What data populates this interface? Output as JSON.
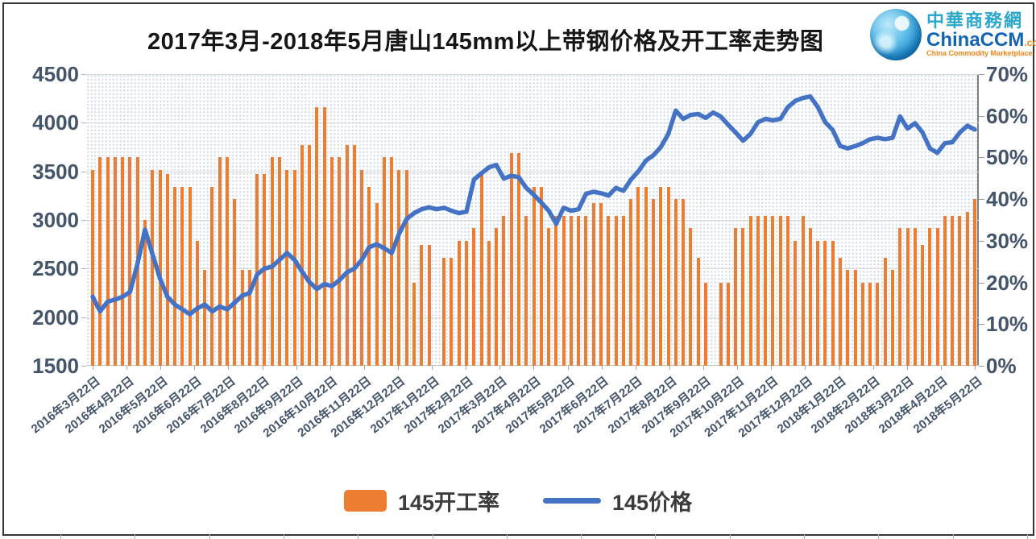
{
  "title": "2017年3月-2018年5月唐山145mm以上带钢价格及开工率走势图",
  "logo": {
    "cn": "中華商務網",
    "en": "ChinaCCM",
    "tld": ".com",
    "tagline": "China Commodity Marketplace"
  },
  "colors": {
    "bar": "#ED7D31",
    "line": "#4472C4",
    "gridline": "#D9D9D9",
    "axis_text": "#44546A"
  },
  "left_axis": {
    "labels": [
      "4500",
      "4000",
      "3500",
      "3000",
      "2500",
      "2000",
      "1500"
    ],
    "min": 1500,
    "max": 4500
  },
  "right_axis": {
    "labels": [
      "70%",
      "60%",
      "50%",
      "40%",
      "30%",
      "20%",
      "10%",
      "0%"
    ],
    "min": 0,
    "max": 70
  },
  "legend": [
    {
      "label": "145开工率",
      "type": "bar",
      "color": "#ED7D31"
    },
    {
      "label": "145价格",
      "type": "line",
      "color": "#4472C4"
    }
  ],
  "chart_data": {
    "type": "bar+line",
    "title": "2017年3月-2018年5月唐山145mm以上带钢价格及开工率走势图",
    "x_tick_labels": [
      "2016年3月22日",
      "2016年4月22日",
      "2016年5月22日",
      "2016年6月22日",
      "2016年7月22日",
      "2016年8月22日",
      "2016年9月22日",
      "2016年10月22日",
      "2016年11月22日",
      "2016年12月22日",
      "2017年1月22日",
      "2017年2月22日",
      "2017年3月22日",
      "2017年4月22日",
      "2017年5月22日",
      "2017年6月22日",
      "2017年7月22日",
      "2017年8月22日",
      "2017年9月22日",
      "2017年10月22日",
      "2017年11月22日",
      "2017年12月22日",
      "2018年1月22日",
      "2018年2月22日",
      "2018年3月22日",
      "2018年4月22日",
      "2018年5月22日"
    ],
    "left_ylim": [
      1500,
      4500
    ],
    "right_ylim": [
      0,
      70
    ],
    "grid": true,
    "legend_position": "bottom",
    "series": [
      {
        "name": "145开工率",
        "type": "bar",
        "axis": "right",
        "unit": "%",
        "values": [
          47,
          50,
          50,
          50,
          50,
          50,
          50,
          35,
          47,
          47,
          46,
          43,
          43,
          43,
          30,
          23,
          43,
          50,
          50,
          40,
          23,
          23,
          46,
          46,
          50,
          50,
          47,
          47,
          53,
          53,
          62,
          62,
          50,
          50,
          53,
          53,
          47,
          43,
          39,
          50,
          50,
          47,
          47,
          20,
          29,
          29,
          null,
          26,
          26,
          30,
          30,
          33,
          46,
          30,
          33,
          36,
          51,
          51,
          36,
          43,
          43,
          33,
          36,
          36,
          36,
          36,
          36,
          39,
          39,
          36,
          36,
          36,
          40,
          43,
          43,
          40,
          43,
          43,
          40,
          40,
          33,
          26,
          20,
          null,
          20,
          20,
          33,
          33,
          36,
          36,
          36,
          36,
          36,
          36,
          30,
          36,
          33,
          30,
          30,
          30,
          26,
          23,
          23,
          20,
          20,
          20,
          26,
          23,
          33,
          33,
          33,
          29,
          33,
          33,
          36,
          36,
          36,
          37,
          40
        ]
      },
      {
        "name": "145价格",
        "type": "line",
        "axis": "left",
        "values": [
          2210,
          2060,
          2160,
          2180,
          2210,
          2260,
          2550,
          2900,
          2650,
          2400,
          2210,
          2130,
          2080,
          2030,
          2090,
          2130,
          2060,
          2110,
          2080,
          2150,
          2220,
          2250,
          2440,
          2500,
          2520,
          2590,
          2660,
          2590,
          2470,
          2360,
          2290,
          2340,
          2320,
          2380,
          2460,
          2500,
          2590,
          2720,
          2750,
          2710,
          2660,
          2860,
          3010,
          3070,
          3110,
          3130,
          3110,
          3125,
          3095,
          3070,
          3085,
          3415,
          3480,
          3540,
          3565,
          3425,
          3455,
          3440,
          3330,
          3260,
          3180,
          3095,
          2960,
          3125,
          3095,
          3110,
          3270,
          3290,
          3275,
          3250,
          3330,
          3300,
          3415,
          3500,
          3610,
          3665,
          3750,
          3885,
          4125,
          4040,
          4080,
          4090,
          4050,
          4105,
          4065,
          3980,
          3900,
          3815,
          3885,
          4005,
          4040,
          4025,
          4040,
          4160,
          4225,
          4255,
          4270,
          4160,
          4005,
          3925,
          3760,
          3735,
          3760,
          3790,
          3830,
          3845,
          3830,
          3845,
          4065,
          3940,
          3995,
          3900,
          3735,
          3690,
          3790,
          3800,
          3900,
          3970,
          3930
        ]
      }
    ]
  }
}
